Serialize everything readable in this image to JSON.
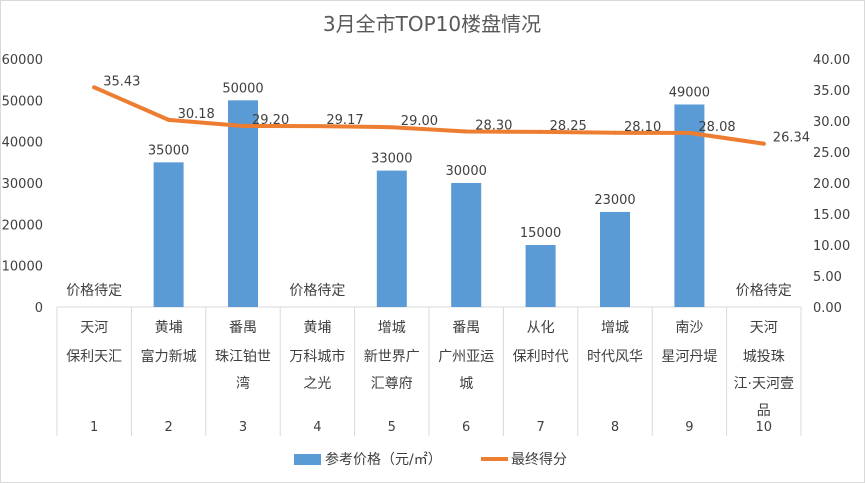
{
  "chart_data": {
    "type": "bar+line",
    "title": "3月全市TOP10楼盘情况",
    "categories": [
      {
        "rank": "1",
        "district": "天河",
        "name_lines": [
          "保利天汇"
        ]
      },
      {
        "rank": "2",
        "district": "黄埔",
        "name_lines": [
          "富力新城"
        ]
      },
      {
        "rank": "3",
        "district": "番禺",
        "name_lines": [
          "珠江铂世",
          "湾"
        ]
      },
      {
        "rank": "4",
        "district": "黄埔",
        "name_lines": [
          "万科城市",
          "之光"
        ]
      },
      {
        "rank": "5",
        "district": "增城",
        "name_lines": [
          "新世界广",
          "汇尊府"
        ]
      },
      {
        "rank": "6",
        "district": "番禺",
        "name_lines": [
          "广州亚运",
          "城"
        ]
      },
      {
        "rank": "7",
        "district": "从化",
        "name_lines": [
          "保利时代"
        ]
      },
      {
        "rank": "8",
        "district": "增城",
        "name_lines": [
          "时代风华"
        ]
      },
      {
        "rank": "9",
        "district": "南沙",
        "name_lines": [
          "星河丹堤"
        ]
      },
      {
        "rank": "10",
        "district": "天河",
        "name_lines": [
          "城投珠",
          "江·天河壹",
          "品"
        ]
      }
    ],
    "series": [
      {
        "name": "参考价格（元/㎡）",
        "type": "bar",
        "axis": "left",
        "color": "#5b9bd5",
        "values": [
          null,
          35000,
          50000,
          null,
          33000,
          30000,
          15000,
          23000,
          49000,
          null
        ],
        "labels": [
          "价格待定",
          "35000",
          "50000",
          "价格待定",
          "33000",
          "30000",
          "15000",
          "23000",
          "49000",
          "价格待定"
        ]
      },
      {
        "name": "最终得分",
        "type": "line",
        "axis": "right",
        "color": "#ed7d31",
        "values": [
          35.43,
          30.18,
          29.2,
          29.17,
          29.0,
          28.3,
          28.25,
          28.1,
          28.08,
          26.34
        ],
        "labels": [
          "35.43",
          "30.18",
          "29.20",
          "29.17",
          "29.00",
          "28.30",
          "28.25",
          "28.10",
          "28.08",
          "26.34"
        ]
      }
    ],
    "y_left": {
      "min": 0,
      "max": 60000,
      "ticks": [
        "0",
        "10000",
        "20000",
        "30000",
        "40000",
        "50000",
        "60000"
      ]
    },
    "y_right": {
      "min": 0,
      "max": 40,
      "ticks": [
        "0.00",
        "5.00",
        "10.00",
        "15.00",
        "20.00",
        "25.00",
        "30.00",
        "35.00",
        "40.00"
      ]
    },
    "legend_position": "bottom",
    "grid": false
  }
}
